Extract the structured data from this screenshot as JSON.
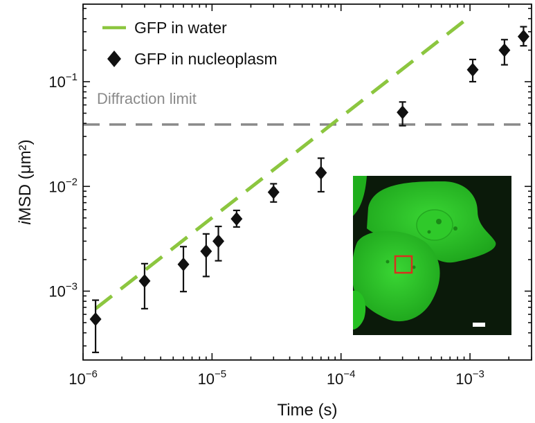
{
  "chart_data": {
    "type": "scatter",
    "title": "",
    "xlabel": "Time (s)",
    "ylabel_italic": "i",
    "ylabel_rest": "MSD (μm²)",
    "xscale": "log",
    "yscale": "log",
    "xlim": [
      1e-06,
      0.003
    ],
    "ylim": [
      0.00022,
      0.55
    ],
    "x_ticks": [
      {
        "value": 1e-06,
        "base": "10",
        "exp": "−6"
      },
      {
        "value": 1e-05,
        "base": "10",
        "exp": "−5"
      },
      {
        "value": 0.0001,
        "base": "10",
        "exp": "−4"
      },
      {
        "value": 0.001,
        "base": "10",
        "exp": "−3"
      }
    ],
    "y_ticks": [
      {
        "value": 0.001,
        "base": "10",
        "exp": "−3"
      },
      {
        "value": 0.01,
        "base": "10",
        "exp": "−2"
      },
      {
        "value": 0.1,
        "base": "10",
        "exp": "−1"
      }
    ],
    "series": [
      {
        "name": "GFP in water",
        "kind": "line",
        "color": "#8cc63f",
        "x": [
          1.25e-06,
          0.00095
        ],
        "y": [
          0.00068,
          0.4
        ]
      },
      {
        "name": "GFP in nucleoplasm",
        "kind": "points",
        "marker": "diamond",
        "color": "#111111",
        "x": [
          1.25e-06,
          3e-06,
          6e-06,
          9e-06,
          1.12e-05,
          1.55e-05,
          3e-05,
          7e-05,
          0.0003,
          0.00105,
          0.00185,
          0.0026
        ],
        "y": [
          0.00054,
          0.00125,
          0.0018,
          0.0024,
          0.003,
          0.0049,
          0.0088,
          0.0135,
          0.051,
          0.13,
          0.2,
          0.27
        ],
        "y_low": [
          0.00026,
          0.00068,
          0.00099,
          0.00138,
          0.00195,
          0.0041,
          0.0071,
          0.0089,
          0.038,
          0.1,
          0.145,
          0.22
        ],
        "y_high": [
          0.00082,
          0.00183,
          0.00266,
          0.00352,
          0.00415,
          0.0059,
          0.0106,
          0.0186,
          0.064,
          0.163,
          0.252,
          0.335
        ]
      }
    ],
    "reference_lines": [
      {
        "name": "Diffraction limit",
        "y": 0.039,
        "color": "#8a8a8a",
        "style": "dashed"
      }
    ],
    "legend": {
      "position": "top-left"
    },
    "inset": {
      "description": "green fluorescence micrograph of cells",
      "background": "#0b1a0a",
      "cell_color": "#2cc427",
      "highlight_box_color": "#d9301e",
      "scale_bar_color": "#ffffff"
    }
  }
}
